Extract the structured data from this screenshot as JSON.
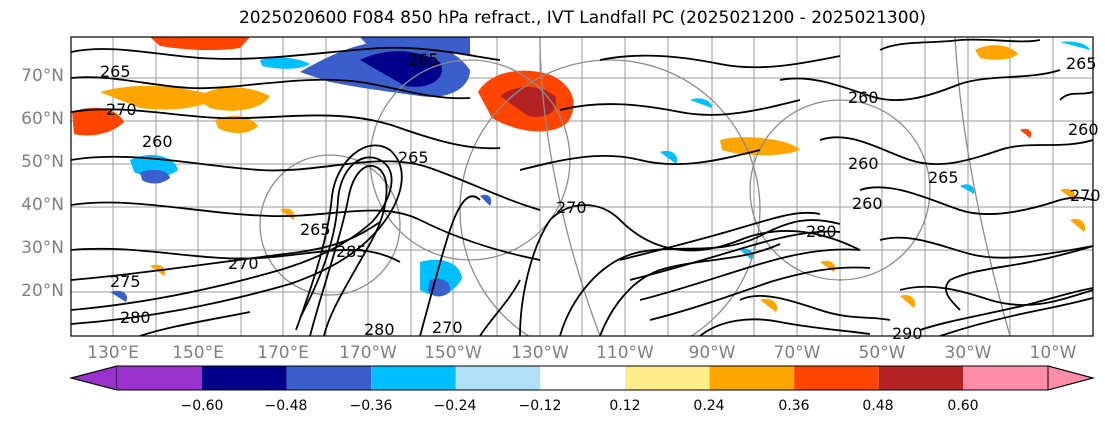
{
  "title": "2025020600 F084 850 hPa refract., IVT Landfall PC (2025021200 - 2025021300)",
  "map": {
    "lat_labels": [
      "70°N",
      "60°N",
      "50°N",
      "40°N",
      "30°N",
      "20°N"
    ],
    "lon_labels": [
      "130°E",
      "150°E",
      "170°E",
      "170°W",
      "150°W",
      "130°W",
      "110°W",
      "90°W",
      "70°W",
      "50°W",
      "30°W",
      "10°W"
    ],
    "contour_labels": [
      "265",
      "265",
      "270",
      "260",
      "260",
      "265",
      "260",
      "270",
      "265",
      "275",
      "280",
      "270",
      "265",
      "260",
      "260",
      "270",
      "280",
      "290",
      "285",
      "280",
      "270",
      "265"
    ]
  },
  "colorbar": {
    "ticks": [
      "−0.60",
      "−0.48",
      "−0.36",
      "−0.24",
      "−0.12",
      "0.12",
      "0.24",
      "0.36",
      "0.48",
      "0.60"
    ],
    "colors": [
      "#9932cc",
      "#00008b",
      "#3a5fcd",
      "#00bfff",
      "#b0e0f8",
      "#ffffff",
      "#ffec8b",
      "#ffa500",
      "#ff4500",
      "#b22222",
      "#ff8ca8"
    ]
  }
}
